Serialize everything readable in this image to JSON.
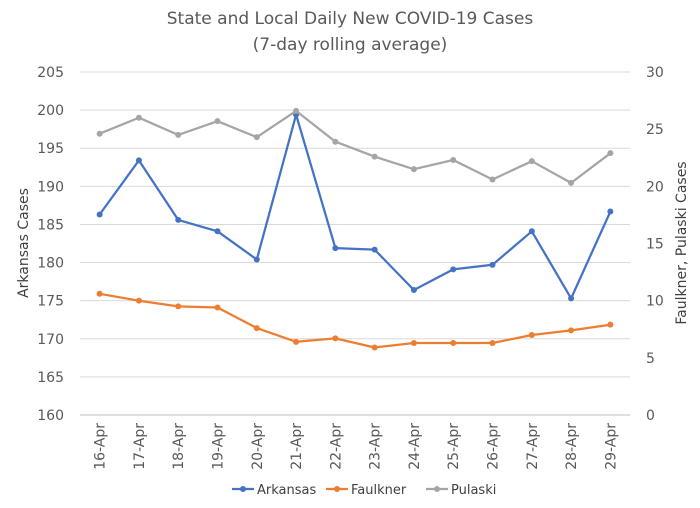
{
  "chart_data": {
    "type": "line",
    "title": "State and Local Daily New COVID-19 Cases",
    "subtitle": "(7-day rolling average)",
    "categories": [
      "16-Apr",
      "17-Apr",
      "18-Apr",
      "19-Apr",
      "20-Apr",
      "21-Apr",
      "22-Apr",
      "23-Apr",
      "24-Apr",
      "25-Apr",
      "26-Apr",
      "27-Apr",
      "28-Apr",
      "29-Apr"
    ],
    "ylabel": "Arkansas Cases",
    "y2label": "Faulkner, Pulaski Cases",
    "ylim": [
      160,
      205
    ],
    "yticks": [
      160,
      165,
      170,
      175,
      180,
      185,
      190,
      195,
      200,
      205
    ],
    "y2lim": [
      0,
      30
    ],
    "y2ticks": [
      0,
      5,
      10,
      15,
      20,
      25,
      30
    ],
    "grid": true,
    "legend_position": "bottom",
    "series": [
      {
        "name": "Arkansas",
        "axis": "left",
        "color": "#4472C4",
        "values": [
          186.3,
          193.4,
          185.6,
          184.1,
          180.4,
          199.4,
          181.9,
          181.7,
          176.4,
          179.1,
          179.7,
          184.1,
          175.3,
          186.7
        ]
      },
      {
        "name": "Faulkner",
        "axis": "right",
        "color": "#ED7D31",
        "values": [
          10.6,
          10.0,
          9.5,
          9.4,
          7.6,
          6.4,
          6.7,
          5.9,
          6.3,
          6.3,
          6.3,
          7.0,
          7.4,
          7.9
        ]
      },
      {
        "name": "Pulaski",
        "axis": "right",
        "color": "#A5A5A5",
        "values": [
          24.6,
          26.0,
          24.5,
          25.7,
          24.3,
          26.6,
          23.9,
          22.6,
          21.5,
          22.3,
          20.6,
          22.2,
          20.3,
          22.9
        ]
      }
    ]
  }
}
